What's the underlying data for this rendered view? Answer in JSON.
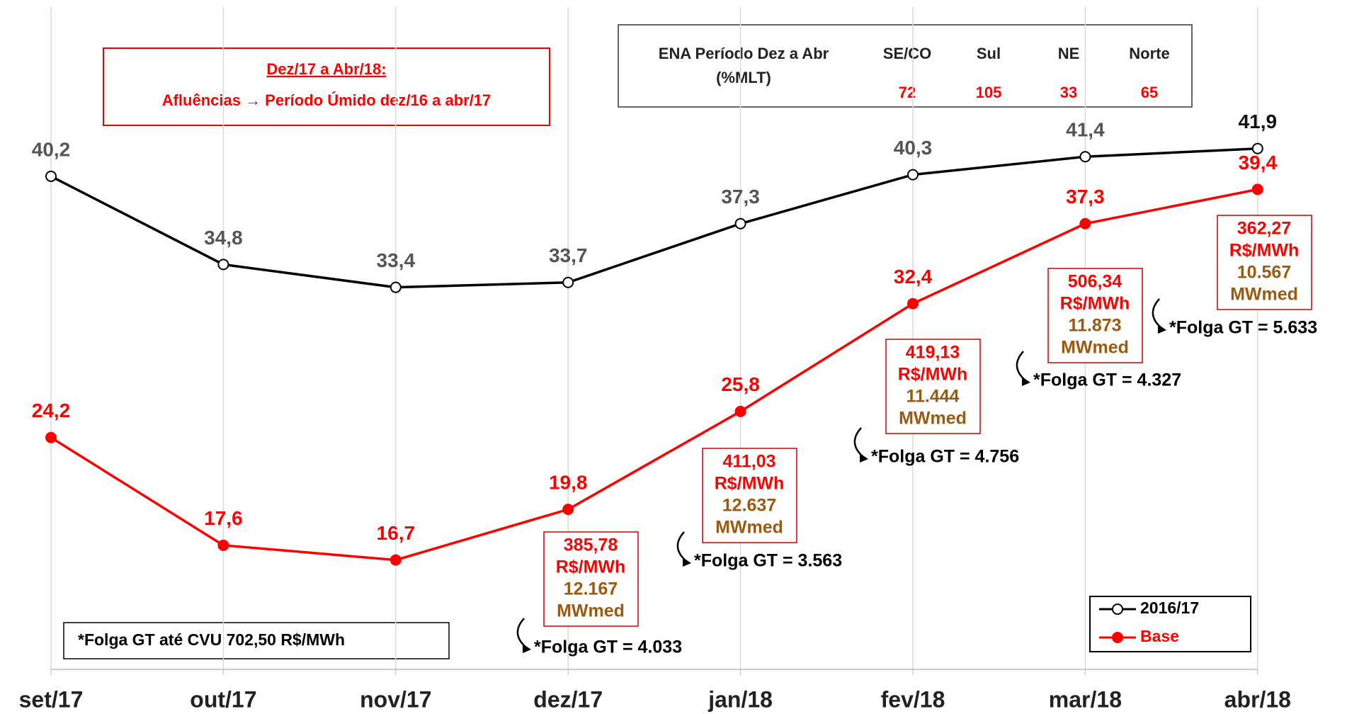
{
  "chart_data": {
    "type": "line",
    "categories": [
      "set/17",
      "out/17",
      "nov/17",
      "dez/17",
      "jan/18",
      "fev/18",
      "mar/18",
      "abr/18"
    ],
    "series": [
      {
        "name": "2016/17",
        "color": "#000000",
        "marker": "open",
        "values": [
          40.2,
          34.8,
          33.4,
          33.7,
          37.3,
          40.3,
          41.4,
          41.9
        ],
        "value_labels": [
          "40,2",
          "34,8",
          "33,4",
          "33,7",
          "37,3",
          "40,3",
          "41,4",
          "41,9"
        ]
      },
      {
        "name": "Base",
        "color": "#ff0000",
        "marker": "filled",
        "values": [
          24.2,
          17.6,
          16.7,
          19.8,
          25.8,
          32.4,
          37.3,
          39.4
        ],
        "value_labels": [
          "24,2",
          "17,6",
          "16,7",
          "19,8",
          "25,8",
          "32,4",
          "37,3",
          "39,4"
        ]
      }
    ],
    "ylim": [
      10,
      51
    ],
    "grid": true,
    "legend": "bottom-right",
    "info_box": {
      "title": "Dez/17 a Abr/18:",
      "text": "Afluências → Período Úmido dez/16 a abr/17"
    },
    "ena_table": {
      "title": "ENA Período Dez a Abr",
      "subtitle": "(%MLT)",
      "headers": [
        "SE/CO",
        "Sul",
        "NE",
        "Norte"
      ],
      "values": [
        72,
        105,
        33,
        65
      ]
    },
    "note": "*Folga GT até CVU 702,50 R$/MWh",
    "annotations": [
      {
        "x": "dez/17",
        "price": "385,78",
        "unit": "R$/MWh",
        "power": "12.167",
        "power_unit": "MWmed",
        "folga": "*Folga GT = 4.033"
      },
      {
        "x": "jan/18",
        "price": "411,03",
        "unit": "R$/MWh",
        "power": "12.637",
        "power_unit": "MWmed",
        "folga": "*Folga GT = 3.563"
      },
      {
        "x": "fev/18",
        "price": "419,13",
        "unit": "R$/MWh",
        "power": "11.444",
        "power_unit": "MWmed",
        "folga": "*Folga GT = 4.756"
      },
      {
        "x": "mar/18",
        "price": "506,34",
        "unit": "R$/MWh",
        "power": "11.873",
        "power_unit": "MWmed",
        "folga": "*Folga GT = 4.327"
      },
      {
        "x": "abr/18",
        "price": "362,27",
        "unit": "R$/MWh",
        "power": "10.567",
        "power_unit": "MWmed",
        "folga": "*Folga GT = 5.633"
      }
    ]
  }
}
